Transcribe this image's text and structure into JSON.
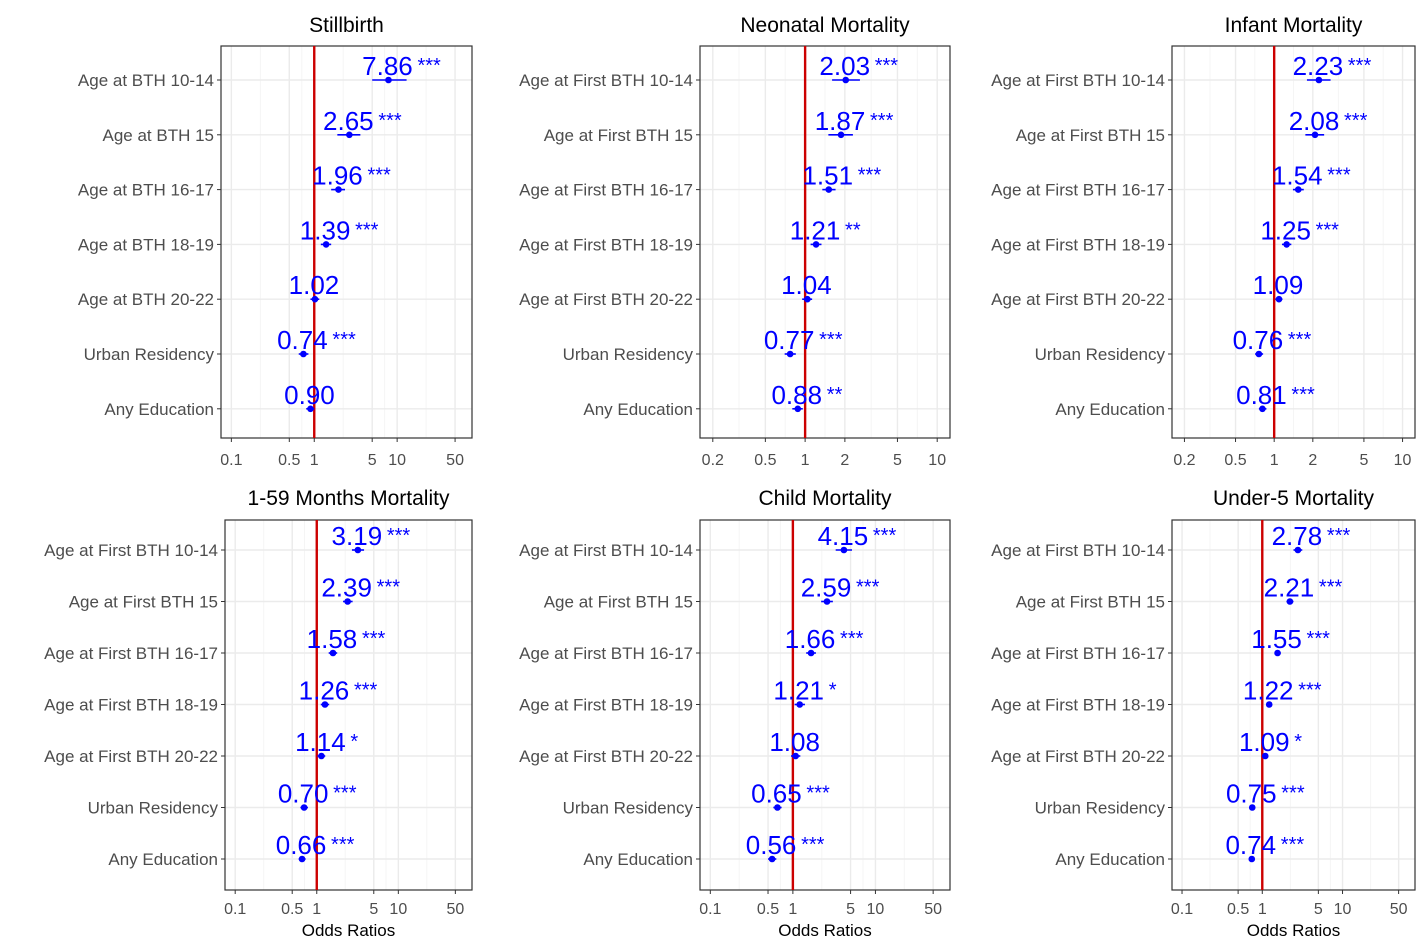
{
  "chart_data": [
    {
      "type": "forest",
      "title": "Stillbirth",
      "xlabel": "",
      "xscale": "log",
      "xlim": [
        0.075,
        80
      ],
      "xticks": [
        "0.1",
        "0.5",
        "1",
        "5",
        "10",
        "50"
      ],
      "reference_line": 1,
      "categories": [
        "Age at BTH 10-14",
        "Age at BTH 15",
        "Age at BTH 16-17",
        "Age at  BTH 18-19",
        "Age at BTH 20-22",
        "Urban Residency",
        "Any Education"
      ],
      "values": [
        7.86,
        2.65,
        1.96,
        1.39,
        1.02,
        0.74,
        0.9
      ],
      "ci": [
        [
          5.0,
          13.0
        ],
        [
          1.9,
          3.6
        ],
        [
          1.6,
          2.35
        ],
        [
          1.2,
          1.6
        ],
        [
          0.9,
          1.15
        ],
        [
          0.65,
          0.85
        ],
        [
          0.8,
          1.0
        ]
      ],
      "labels": [
        "7.86",
        "2.65",
        "1.96",
        "1.39",
        "1.02",
        "0.74",
        "0.90"
      ],
      "significance": [
        "***",
        "***",
        "***",
        "***",
        "",
        "***",
        ""
      ]
    },
    {
      "type": "forest",
      "title": "Neonatal Mortality",
      "xlabel": "",
      "xscale": "log",
      "xlim": [
        0.16,
        12.5
      ],
      "xticks": [
        "0.2",
        "0.5",
        "1",
        "2",
        "5",
        "10"
      ],
      "reference_line": 1,
      "categories": [
        "Age at First BTH 10-14",
        "Age at First BTH 15",
        "Age at First BTH 16-17",
        "Age at First BTH 18-19",
        "Age at First BTH 20-22",
        "Urban Residency",
        "Any Education"
      ],
      "values": [
        2.03,
        1.87,
        1.51,
        1.21,
        1.04,
        0.77,
        0.88
      ],
      "ci": [
        [
          1.6,
          2.6
        ],
        [
          1.5,
          2.3
        ],
        [
          1.35,
          1.7
        ],
        [
          1.1,
          1.33
        ],
        [
          0.95,
          1.13
        ],
        [
          0.7,
          0.85
        ],
        [
          0.8,
          0.96
        ]
      ],
      "labels": [
        "2.03",
        "1.87",
        "1.51",
        "1.21",
        "1.04",
        "0.77",
        "0.88"
      ],
      "significance": [
        "***",
        "***",
        "***",
        "**",
        "",
        "***",
        "**"
      ]
    },
    {
      "type": "forest",
      "title": "Infant Mortality",
      "xlabel": "",
      "xscale": "log",
      "xlim": [
        0.16,
        12.5
      ],
      "xticks": [
        "0.2",
        "0.5",
        "1",
        "2",
        "5",
        "10"
      ],
      "reference_line": 1,
      "categories": [
        "Age at First BTH 10-14",
        "Age at First BTH 15",
        "Age at First BTH 16-17",
        "Age at First BTH 18-19",
        "Age at First BTH 20-22",
        "Urban Residency",
        "Any Education"
      ],
      "values": [
        2.23,
        2.08,
        1.54,
        1.25,
        1.09,
        0.76,
        0.81
      ],
      "ci": [
        [
          1.8,
          2.75
        ],
        [
          1.75,
          2.45
        ],
        [
          1.4,
          1.7
        ],
        [
          1.15,
          1.36
        ],
        [
          1.02,
          1.16
        ],
        [
          0.71,
          0.82
        ],
        [
          0.76,
          0.87
        ]
      ],
      "labels": [
        "2.23",
        "2.08",
        "1.54",
        "1.25",
        "1.09",
        "0.76",
        "0.81"
      ],
      "significance": [
        "***",
        "***",
        "***",
        "***",
        "",
        "***",
        "***"
      ]
    },
    {
      "type": "forest",
      "title": "1-59 Months Mortality",
      "xlabel": "Odds Ratios",
      "xscale": "log",
      "xlim": [
        0.075,
        80
      ],
      "xticks": [
        "0.1",
        "0.5",
        "1",
        "5",
        "10",
        "50"
      ],
      "reference_line": 1,
      "categories": [
        "Age at First BTH 10-14",
        "Age at First BTH 15",
        "Age at First BTH 16-17",
        "Age at First BTH 18-19",
        "Age at First BTH 20-22",
        "Urban Residency",
        "Any Education"
      ],
      "values": [
        3.19,
        2.39,
        1.58,
        1.26,
        1.14,
        0.7,
        0.66
      ],
      "ci": [
        [
          2.7,
          3.8
        ],
        [
          2.1,
          2.75
        ],
        [
          1.4,
          1.78
        ],
        [
          1.12,
          1.42
        ],
        [
          1.02,
          1.27
        ],
        [
          0.63,
          0.78
        ],
        [
          0.6,
          0.73
        ]
      ],
      "labels": [
        "3.19",
        "2.39",
        "1.58",
        "1.26",
        "1.14",
        "0.70",
        "0.66"
      ],
      "significance": [
        "***",
        "***",
        "***",
        "***",
        "*",
        "***",
        "***"
      ]
    },
    {
      "type": "forest",
      "title": "Child Mortality",
      "xlabel": "Odds Ratios",
      "xscale": "log",
      "xlim": [
        0.075,
        80
      ],
      "xticks": [
        "0.1",
        "0.5",
        "1",
        "5",
        "10",
        "50"
      ],
      "reference_line": 1,
      "categories": [
        "Age at First BTH 10-14",
        "Age at First BTH 15",
        "Age at First BTH 16-17",
        "Age at First BTH 18-19",
        "Age at First BTH 20-22",
        "Urban Residency",
        "Any Education"
      ],
      "values": [
        4.15,
        2.59,
        1.66,
        1.21,
        1.08,
        0.65,
        0.56
      ],
      "ci": [
        [
          3.3,
          5.2
        ],
        [
          2.2,
          3.05
        ],
        [
          1.45,
          1.9
        ],
        [
          1.05,
          1.4
        ],
        [
          0.95,
          1.23
        ],
        [
          0.58,
          0.73
        ],
        [
          0.5,
          0.63
        ]
      ],
      "labels": [
        "4.15",
        "2.59",
        "1.66",
        "1.21",
        "1.08",
        "0.65",
        "0.56"
      ],
      "significance": [
        "***",
        "***",
        "***",
        "*",
        "",
        "***",
        "***"
      ]
    },
    {
      "type": "forest",
      "title": "Under-5 Mortality",
      "xlabel": "Odds Ratios",
      "xscale": "log",
      "xlim": [
        0.075,
        80
      ],
      "xticks": [
        "0.1",
        "0.5",
        "1",
        "5",
        "10",
        "50"
      ],
      "reference_line": 1,
      "categories": [
        "Age at First BTH 10-14",
        "Age at First BTH 15",
        "Age at First BTH 16-17",
        "Age at First BTH 18-19",
        "Age at First BTH 20-22",
        "Urban Residency",
        "Any Education"
      ],
      "values": [
        2.78,
        2.21,
        1.55,
        1.22,
        1.09,
        0.75,
        0.74
      ],
      "ci": [
        [
          2.45,
          3.15
        ],
        [
          2.0,
          2.45
        ],
        [
          1.42,
          1.7
        ],
        [
          1.12,
          1.33
        ],
        [
          1.01,
          1.18
        ],
        [
          0.69,
          0.81
        ],
        [
          0.68,
          0.8
        ]
      ],
      "labels": [
        "2.78",
        "2.21",
        "1.55",
        "1.22",
        "1.09",
        "0.75",
        "0.74"
      ],
      "significance": [
        "***",
        "***",
        "***",
        "***",
        "*",
        "***",
        "***"
      ]
    }
  ],
  "colors": {
    "point": "#0000ff",
    "reference_line": "#cc0000",
    "grid_major": "#ebebeb",
    "grid_minor": "#f5f5f5",
    "panel_border": "#333333",
    "axis_text": "#4d4d4d"
  }
}
